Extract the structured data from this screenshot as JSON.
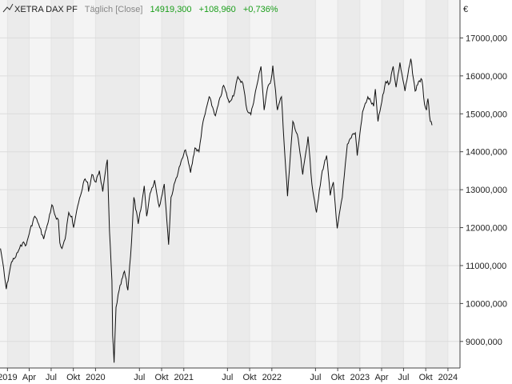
{
  "header": {
    "instrument": "XETRA DAX PF",
    "interval": "Täglich [Close]",
    "last": "14919,300",
    "change": "+108,960",
    "change_pct": "+0,736%"
  },
  "colors": {
    "line": "#111111",
    "band_light": "#f4f4f4",
    "band_dark": "#ebebeb",
    "grid": "#dcdcdc",
    "axis": "#444444",
    "positive": "#1a9e1a",
    "muted": "#888888"
  },
  "chart_data": {
    "type": "line",
    "title": "XETRA DAX PF",
    "y_unit": "€",
    "xlim": [
      "2018-12-01",
      "2024-02-20"
    ],
    "ylim": [
      8300,
      18000
    ],
    "y_ticks": [
      {
        "value": 9000,
        "label": "9000,000"
      },
      {
        "value": 10000,
        "label": "10000,000"
      },
      {
        "value": 11000,
        "label": "11000,000"
      },
      {
        "value": 12000,
        "label": "12000,000"
      },
      {
        "value": 13000,
        "label": "13000,000"
      },
      {
        "value": 14000,
        "label": "14000,000"
      },
      {
        "value": 15000,
        "label": "15000,000"
      },
      {
        "value": 16000,
        "label": "16000,000"
      },
      {
        "value": 17000,
        "label": "17000,000"
      }
    ],
    "x_ticks": [
      {
        "date": "2019-01-01",
        "label": "2019"
      },
      {
        "date": "2019-04-01",
        "label": "Apr"
      },
      {
        "date": "2019-07-01",
        "label": "Jul"
      },
      {
        "date": "2019-10-01",
        "label": "Okt"
      },
      {
        "date": "2020-01-01",
        "label": "2020"
      },
      {
        "date": "2020-07-01",
        "label": "Jul"
      },
      {
        "date": "2020-10-01",
        "label": "Okt"
      },
      {
        "date": "2021-01-01",
        "label": "2021"
      },
      {
        "date": "2021-07-01",
        "label": "Jul"
      },
      {
        "date": "2021-10-01",
        "label": "Okt"
      },
      {
        "date": "2022-01-01",
        "label": "2022"
      },
      {
        "date": "2022-07-01",
        "label": "Jul"
      },
      {
        "date": "2022-10-01",
        "label": "Okt"
      },
      {
        "date": "2023-01-01",
        "label": "2023"
      },
      {
        "date": "2023-04-01",
        "label": "Apr"
      },
      {
        "date": "2023-07-01",
        "label": "Jul"
      },
      {
        "date": "2023-10-01",
        "label": "Okt"
      },
      {
        "date": "2024-01-01",
        "label": "2024"
      }
    ],
    "series": [
      {
        "points": [
          [
            "2018-12-03",
            11450
          ],
          [
            "2018-12-12",
            11100
          ],
          [
            "2018-12-20",
            10700
          ],
          [
            "2018-12-27",
            10380
          ],
          [
            "2019-01-07",
            10750
          ],
          [
            "2019-01-18",
            11100
          ],
          [
            "2019-02-01",
            11200
          ],
          [
            "2019-02-20",
            11450
          ],
          [
            "2019-03-05",
            11600
          ],
          [
            "2019-03-20",
            11550
          ],
          [
            "2019-04-05",
            11950
          ],
          [
            "2019-04-24",
            12300
          ],
          [
            "2019-05-06",
            12150
          ],
          [
            "2019-05-15",
            12000
          ],
          [
            "2019-05-31",
            11700
          ],
          [
            "2019-06-14",
            12050
          ],
          [
            "2019-06-28",
            12400
          ],
          [
            "2019-07-04",
            12600
          ],
          [
            "2019-07-19",
            12300
          ],
          [
            "2019-07-31",
            12200
          ],
          [
            "2019-08-06",
            11600
          ],
          [
            "2019-08-15",
            11450
          ],
          [
            "2019-08-28",
            11700
          ],
          [
            "2019-09-12",
            12400
          ],
          [
            "2019-09-25",
            12300
          ],
          [
            "2019-10-02",
            12000
          ],
          [
            "2019-10-15",
            12450
          ],
          [
            "2019-10-31",
            12850
          ],
          [
            "2019-11-15",
            13250
          ],
          [
            "2019-11-29",
            13200
          ],
          [
            "2019-12-03",
            12950
          ],
          [
            "2019-12-17",
            13400
          ],
          [
            "2020-01-03",
            13200
          ],
          [
            "2020-01-17",
            13500
          ],
          [
            "2020-01-31",
            12950
          ],
          [
            "2020-02-19",
            13790
          ],
          [
            "2020-02-28",
            11900
          ],
          [
            "2020-03-09",
            10600
          ],
          [
            "2020-03-12",
            9160
          ],
          [
            "2020-03-18",
            8440
          ],
          [
            "2020-03-26",
            9900
          ],
          [
            "2020-04-08",
            10350
          ],
          [
            "2020-04-30",
            10850
          ],
          [
            "2020-05-14",
            10350
          ],
          [
            "2020-05-29",
            11600
          ],
          [
            "2020-06-08",
            12800
          ],
          [
            "2020-06-26",
            12100
          ],
          [
            "2020-07-10",
            12600
          ],
          [
            "2020-07-21",
            13100
          ],
          [
            "2020-07-31",
            12300
          ],
          [
            "2020-08-14",
            12900
          ],
          [
            "2020-09-02",
            13250
          ],
          [
            "2020-09-21",
            12550
          ],
          [
            "2020-10-12",
            13150
          ],
          [
            "2020-10-30",
            11550
          ],
          [
            "2020-11-09",
            12800
          ],
          [
            "2020-11-30",
            13300
          ],
          [
            "2020-12-17",
            13650
          ],
          [
            "2021-01-08",
            14050
          ],
          [
            "2021-01-29",
            13450
          ],
          [
            "2021-02-16",
            14100
          ],
          [
            "2021-03-05",
            14000
          ],
          [
            "2021-03-18",
            14650
          ],
          [
            "2021-04-16",
            15450
          ],
          [
            "2021-05-12",
            14950
          ],
          [
            "2021-06-15",
            15750
          ],
          [
            "2021-07-08",
            15300
          ],
          [
            "2021-07-30",
            15550
          ],
          [
            "2021-08-13",
            15980
          ],
          [
            "2021-09-03",
            15800
          ],
          [
            "2021-09-20",
            15100
          ],
          [
            "2021-10-06",
            14980
          ],
          [
            "2021-10-29",
            15700
          ],
          [
            "2021-11-17",
            16250
          ],
          [
            "2021-11-30",
            15100
          ],
          [
            "2021-12-13",
            15650
          ],
          [
            "2021-12-29",
            15900
          ],
          [
            "2022-01-05",
            16270
          ],
          [
            "2022-01-24",
            15100
          ],
          [
            "2022-02-10",
            15450
          ],
          [
            "2022-02-24",
            13900
          ],
          [
            "2022-03-07",
            12830
          ],
          [
            "2022-03-29",
            14800
          ],
          [
            "2022-04-20",
            14350
          ],
          [
            "2022-05-09",
            13400
          ],
          [
            "2022-05-31",
            14400
          ],
          [
            "2022-06-16",
            13150
          ],
          [
            "2022-07-05",
            12400
          ],
          [
            "2022-07-29",
            13500
          ],
          [
            "2022-08-16",
            13900
          ],
          [
            "2022-08-31",
            12850
          ],
          [
            "2022-09-13",
            13200
          ],
          [
            "2022-09-29",
            11980
          ],
          [
            "2022-10-20",
            12800
          ],
          [
            "2022-11-10",
            14200
          ],
          [
            "2022-11-30",
            14450
          ],
          [
            "2022-12-13",
            14500
          ],
          [
            "2022-12-21",
            13900
          ],
          [
            "2023-01-12",
            15050
          ],
          [
            "2023-02-03",
            15450
          ],
          [
            "2023-02-27",
            15200
          ],
          [
            "2023-03-06",
            15650
          ],
          [
            "2023-03-17",
            14800
          ],
          [
            "2023-04-18",
            15850
          ],
          [
            "2023-05-04",
            15800
          ],
          [
            "2023-05-19",
            16250
          ],
          [
            "2023-05-31",
            15700
          ],
          [
            "2023-06-16",
            16350
          ],
          [
            "2023-07-07",
            15600
          ],
          [
            "2023-07-31",
            16450
          ],
          [
            "2023-08-18",
            15600
          ],
          [
            "2023-09-01",
            15850
          ],
          [
            "2023-09-15",
            15900
          ],
          [
            "2023-09-26",
            15250
          ],
          [
            "2023-10-04",
            15100
          ],
          [
            "2023-10-10",
            15400
          ],
          [
            "2023-10-20",
            14800
          ],
          [
            "2023-10-27",
            14700
          ]
        ]
      }
    ]
  }
}
